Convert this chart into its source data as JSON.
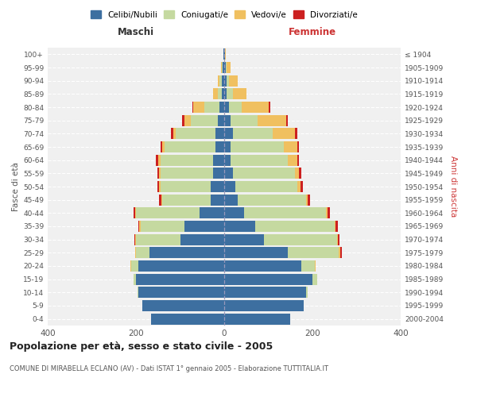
{
  "age_groups": [
    "0-4",
    "5-9",
    "10-14",
    "15-19",
    "20-24",
    "25-29",
    "30-34",
    "35-39",
    "40-44",
    "45-49",
    "50-54",
    "55-59",
    "60-64",
    "65-69",
    "70-74",
    "75-79",
    "80-84",
    "85-89",
    "90-94",
    "95-99",
    "100+"
  ],
  "birth_years": [
    "2000-2004",
    "1995-1999",
    "1990-1994",
    "1985-1989",
    "1980-1984",
    "1975-1979",
    "1970-1974",
    "1965-1969",
    "1960-1964",
    "1955-1959",
    "1950-1954",
    "1945-1949",
    "1940-1944",
    "1935-1939",
    "1930-1934",
    "1925-1929",
    "1920-1924",
    "1915-1919",
    "1910-1914",
    "1905-1909",
    "≤ 1904"
  ],
  "colors": {
    "celibi": "#3d6fa0",
    "coniugati": "#c5d9a0",
    "vedovi": "#f0c060",
    "divorziati": "#cc2020"
  },
  "maschi": {
    "celibi": [
      165,
      185,
      195,
      200,
      195,
      170,
      100,
      90,
      55,
      30,
      30,
      25,
      25,
      20,
      20,
      15,
      10,
      5,
      5,
      4,
      2
    ],
    "coniugati": [
      0,
      0,
      2,
      5,
      15,
      30,
      100,
      100,
      145,
      110,
      115,
      120,
      120,
      115,
      90,
      60,
      35,
      10,
      5,
      2,
      0
    ],
    "vedovi": [
      0,
      0,
      0,
      0,
      2,
      2,
      2,
      2,
      2,
      2,
      2,
      2,
      5,
      5,
      5,
      15,
      25,
      10,
      5,
      2,
      0
    ],
    "divorziati": [
      0,
      0,
      0,
      0,
      0,
      0,
      2,
      3,
      3,
      5,
      5,
      5,
      5,
      5,
      5,
      5,
      2,
      0,
      0,
      0,
      0
    ]
  },
  "femmine": {
    "celibi": [
      150,
      180,
      185,
      200,
      175,
      145,
      90,
      70,
      45,
      30,
      25,
      20,
      15,
      15,
      20,
      15,
      10,
      5,
      5,
      4,
      2
    ],
    "coniugati": [
      0,
      0,
      5,
      10,
      30,
      115,
      165,
      180,
      185,
      155,
      140,
      140,
      130,
      120,
      90,
      60,
      30,
      15,
      5,
      2,
      0
    ],
    "vedovi": [
      0,
      0,
      0,
      0,
      3,
      3,
      3,
      3,
      5,
      5,
      8,
      10,
      20,
      30,
      50,
      65,
      60,
      30,
      20,
      8,
      2
    ],
    "divorziati": [
      0,
      0,
      0,
      0,
      0,
      3,
      3,
      5,
      5,
      5,
      5,
      5,
      5,
      5,
      5,
      5,
      5,
      0,
      0,
      0,
      0
    ]
  },
  "title": "Popolazione per età, sesso e stato civile - 2005",
  "subtitle": "COMUNE DI MIRABELLA ECLANO (AV) - Dati ISTAT 1° gennaio 2005 - Elaborazione TUTTITALIA.IT",
  "xlabel_left": "Maschi",
  "xlabel_right": "Femmine",
  "ylabel_left": "Fasce di età",
  "ylabel_right": "Anni di nascita",
  "xlim": 400,
  "legend_labels": [
    "Celibi/Nubili",
    "Coniugati/e",
    "Vedovi/e",
    "Divorziati/e"
  ],
  "background_color": "#ffffff"
}
